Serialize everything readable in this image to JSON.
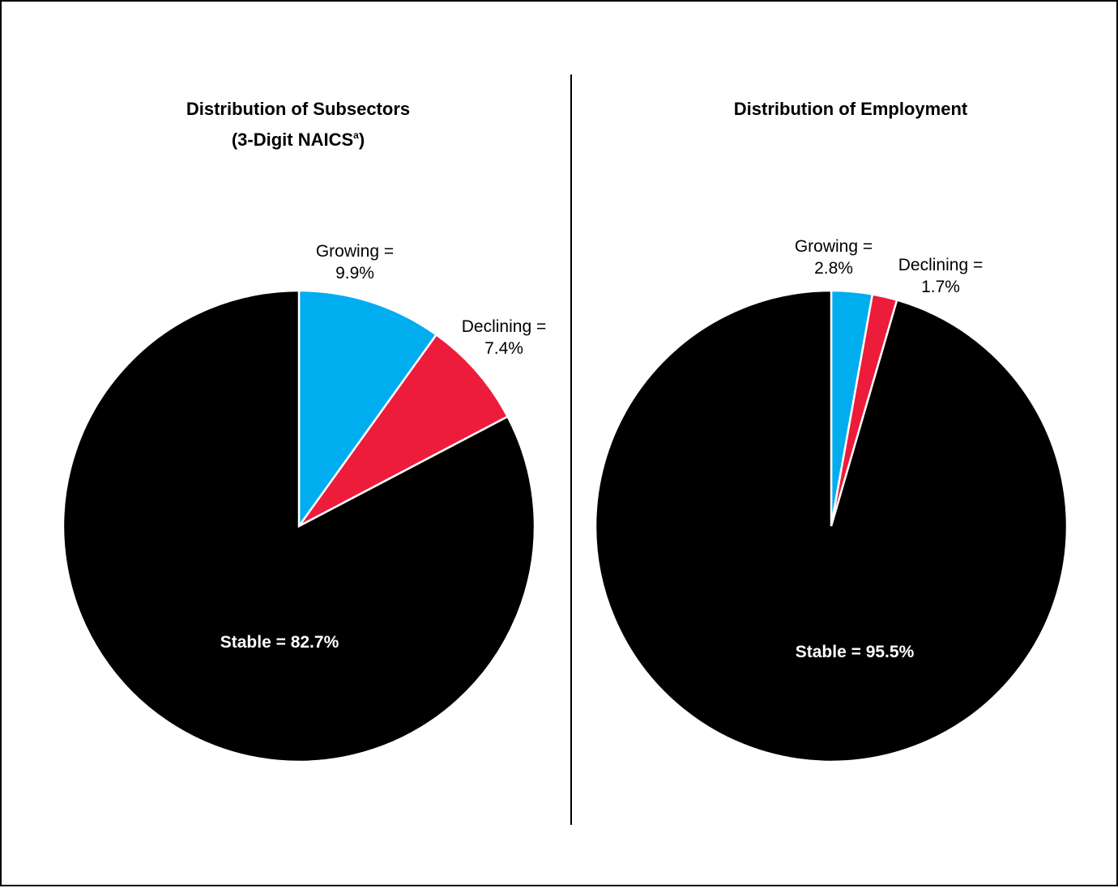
{
  "colors": {
    "growing": "#00aeef",
    "declining": "#ed1c3b",
    "stable": "#000000"
  },
  "chart_data": [
    {
      "type": "pie",
      "title": "Distribution of Subsectors",
      "subtitle": "(3-Digit NAICS",
      "subtitle_sup": "a",
      "subtitle_end": ")",
      "slices": [
        {
          "key": "growing",
          "name": "Growing",
          "value": 9.9,
          "label_line1": "Growing =",
          "label_line2": "9.9%"
        },
        {
          "key": "declining",
          "name": "Declining",
          "value": 7.4,
          "label_line1": "Declining =",
          "label_line2": "7.4%"
        },
        {
          "key": "stable",
          "name": "Stable",
          "value": 82.7,
          "label_line1": "Stable = 82.7%"
        }
      ]
    },
    {
      "type": "pie",
      "title": "Distribution of Employment",
      "slices": [
        {
          "key": "growing",
          "name": "Growing",
          "value": 2.8,
          "label_line1": "Growing =",
          "label_line2": "2.8%"
        },
        {
          "key": "declining",
          "name": "Declining",
          "value": 1.7,
          "label_line1": "Declining =",
          "label_line2": "1.7%"
        },
        {
          "key": "stable",
          "name": "Stable",
          "value": 95.5,
          "label_line1": "Stable = 95.5%"
        }
      ]
    }
  ]
}
